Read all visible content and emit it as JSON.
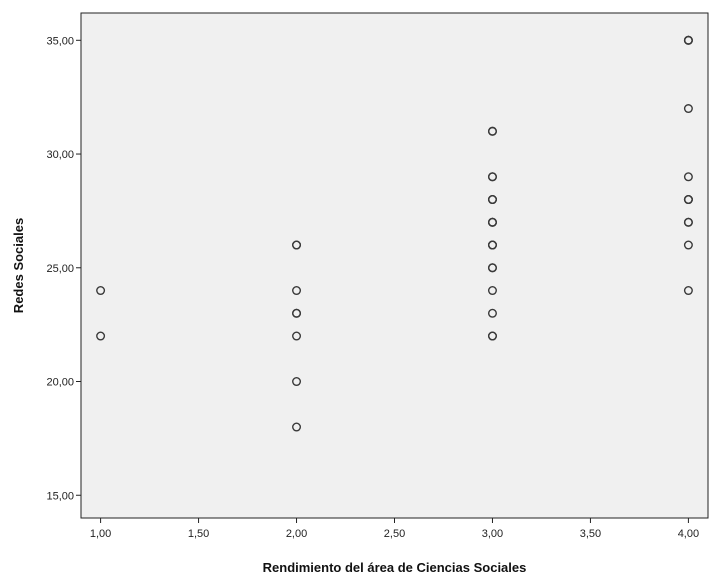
{
  "colors": {
    "plot_background": "#f0f0f0",
    "frame": "#222222",
    "marker_stroke": "#3a3a3a",
    "marker_fill": "#ffffff",
    "page_background": "#ffffff"
  },
  "chart_data": {
    "type": "scatter",
    "xlabel": "Rendimiento del área de Ciencias Sociales",
    "ylabel": "Redes Sociales",
    "xlim": [
      0.9,
      4.1
    ],
    "ylim": [
      14,
      36.2
    ],
    "grid": false,
    "x_ticks": [
      {
        "value": 1.0,
        "label": "1,00"
      },
      {
        "value": 1.5,
        "label": "1,50"
      },
      {
        "value": 2.0,
        "label": "2,00"
      },
      {
        "value": 2.5,
        "label": "2,50"
      },
      {
        "value": 3.0,
        "label": "3,00"
      },
      {
        "value": 3.5,
        "label": "3,50"
      },
      {
        "value": 4.0,
        "label": "4,00"
      }
    ],
    "y_ticks": [
      {
        "value": 15,
        "label": "15,00"
      },
      {
        "value": 20,
        "label": "20,00"
      },
      {
        "value": 25,
        "label": "25,00"
      },
      {
        "value": 30,
        "label": "30,00"
      },
      {
        "value": 35,
        "label": "35,00"
      }
    ],
    "points": [
      {
        "x": 1,
        "y": 24
      },
      {
        "x": 1,
        "y": 22
      },
      {
        "x": 2,
        "y": 26
      },
      {
        "x": 2,
        "y": 26
      },
      {
        "x": 2,
        "y": 24
      },
      {
        "x": 2,
        "y": 23
      },
      {
        "x": 2,
        "y": 23
      },
      {
        "x": 2,
        "y": 22
      },
      {
        "x": 2,
        "y": 20
      },
      {
        "x": 2,
        "y": 18
      },
      {
        "x": 3,
        "y": 31
      },
      {
        "x": 3,
        "y": 31
      },
      {
        "x": 3,
        "y": 29
      },
      {
        "x": 3,
        "y": 29
      },
      {
        "x": 3,
        "y": 28
      },
      {
        "x": 3,
        "y": 28
      },
      {
        "x": 3,
        "y": 28
      },
      {
        "x": 3,
        "y": 27
      },
      {
        "x": 3,
        "y": 27
      },
      {
        "x": 3,
        "y": 27
      },
      {
        "x": 3,
        "y": 26
      },
      {
        "x": 3,
        "y": 26
      },
      {
        "x": 3,
        "y": 26
      },
      {
        "x": 3,
        "y": 25
      },
      {
        "x": 3,
        "y": 25
      },
      {
        "x": 3,
        "y": 24
      },
      {
        "x": 3,
        "y": 23
      },
      {
        "x": 3,
        "y": 22
      },
      {
        "x": 3,
        "y": 22
      },
      {
        "x": 4,
        "y": 35
      },
      {
        "x": 4,
        "y": 35
      },
      {
        "x": 4,
        "y": 35
      },
      {
        "x": 4,
        "y": 32
      },
      {
        "x": 4,
        "y": 29
      },
      {
        "x": 4,
        "y": 28
      },
      {
        "x": 4,
        "y": 28
      },
      {
        "x": 4,
        "y": 28
      },
      {
        "x": 4,
        "y": 27
      },
      {
        "x": 4,
        "y": 27
      },
      {
        "x": 4,
        "y": 26
      },
      {
        "x": 4,
        "y": 24
      }
    ]
  }
}
